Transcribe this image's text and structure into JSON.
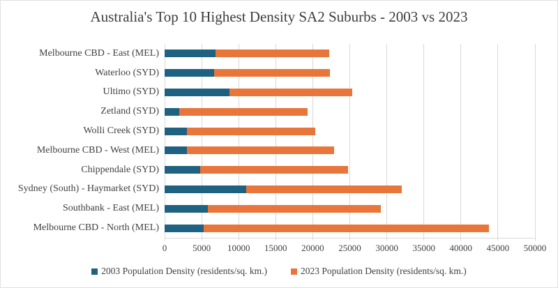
{
  "chart_data": {
    "type": "bar",
    "orientation": "horizontal",
    "stacked": true,
    "title": "Australia's Top 10 Highest Density SA2 Suburbs - 2003 vs 2023",
    "categories": [
      "Melbourne CBD - East (MEL)",
      "Waterloo (SYD)",
      "Ultimo (SYD)",
      "Zetland (SYD)",
      "Wolli Creek (SYD)",
      "Melbourne CBD - West (MEL)",
      "Chippendale (SYD)",
      "Sydney (South) - Haymarket (SYD)",
      "Southbank - East (MEL)",
      "Melbourne CBD - North (MEL)"
    ],
    "series": [
      {
        "name": "2003 Population Density (residents/sq. km.)",
        "color": "#1F6180",
        "values": [
          6850,
          6650,
          8800,
          1950,
          3000,
          3000,
          4800,
          11000,
          5850,
          5300
        ]
      },
      {
        "name": "2023 Population Density (residents/sq. km.)",
        "color": "#E8763B",
        "values": [
          15400,
          15650,
          16550,
          17350,
          17350,
          19900,
          19950,
          21000,
          23300,
          38450
        ]
      }
    ],
    "xlabel": "",
    "ylabel": "",
    "xlim": [
      0,
      50000
    ],
    "x_ticks": [
      0,
      5000,
      10000,
      15000,
      20000,
      25000,
      30000,
      35000,
      40000,
      45000,
      50000
    ],
    "grid": true,
    "gridline_color": "#D9D9D9",
    "legend_position": "bottom"
  },
  "colors": {
    "background": "#FFFFFF",
    "border": "#E0E0E0",
    "text": "#404040",
    "series_2003": "#1F6180",
    "series_2023": "#E8763B"
  }
}
